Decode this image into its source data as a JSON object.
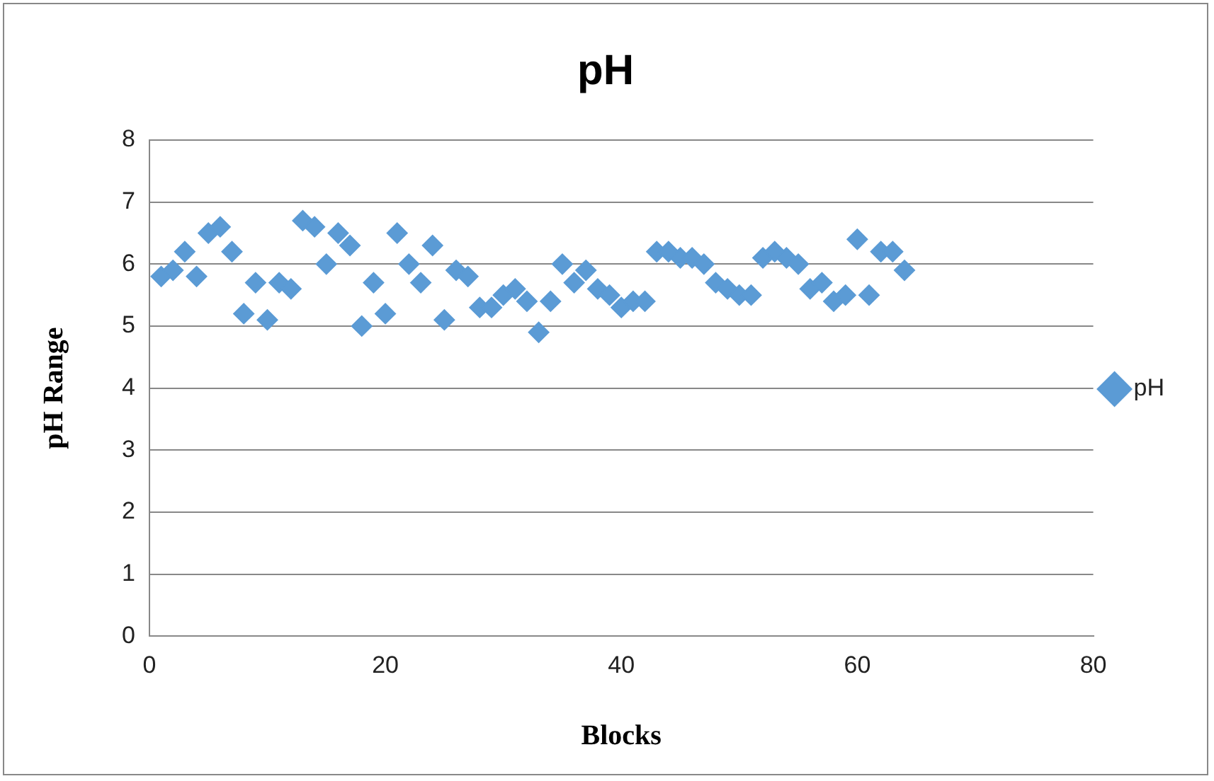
{
  "chart_data": {
    "type": "scatter",
    "title": "pH",
    "xlabel": "Blocks",
    "ylabel": "pH Range",
    "x": [
      1,
      2,
      3,
      4,
      5,
      6,
      7,
      8,
      9,
      10,
      11,
      12,
      13,
      14,
      15,
      16,
      17,
      18,
      19,
      20,
      21,
      22,
      23,
      24,
      25,
      26,
      27,
      28,
      29,
      30,
      31,
      32,
      33,
      34,
      35,
      36,
      37,
      38,
      39,
      40,
      41,
      42,
      43,
      44,
      45,
      46,
      47,
      48,
      49,
      50,
      51,
      52,
      53,
      54,
      55,
      56,
      57,
      58,
      59,
      60,
      61,
      62,
      63,
      64
    ],
    "series": [
      {
        "name": "pH",
        "color": "#5b9bd5",
        "values": [
          5.8,
          5.9,
          6.2,
          5.8,
          6.5,
          6.6,
          6.2,
          5.2,
          5.7,
          5.1,
          5.7,
          5.6,
          6.7,
          6.6,
          6.0,
          6.5,
          6.3,
          5.0,
          5.7,
          5.2,
          6.5,
          6.0,
          5.7,
          6.3,
          5.1,
          5.9,
          5.8,
          5.3,
          5.3,
          5.5,
          5.6,
          5.4,
          4.9,
          5.4,
          6.0,
          5.7,
          5.9,
          5.6,
          5.5,
          5.3,
          5.4,
          5.4,
          6.2,
          6.2,
          6.1,
          6.1,
          6.0,
          5.7,
          5.6,
          5.5,
          5.5,
          6.1,
          6.2,
          6.1,
          6.0,
          5.6,
          5.7,
          5.4,
          5.5,
          6.4,
          5.5,
          6.2,
          6.2,
          5.9
        ]
      }
    ],
    "xlim": [
      0,
      80
    ],
    "xticks": [
      0,
      20,
      40,
      60,
      80
    ],
    "ylim": [
      0,
      8
    ],
    "yticks": [
      0,
      1,
      2,
      3,
      4,
      5,
      6,
      7,
      8
    ],
    "grid": "y",
    "legend": "right",
    "marker": "diamond"
  }
}
